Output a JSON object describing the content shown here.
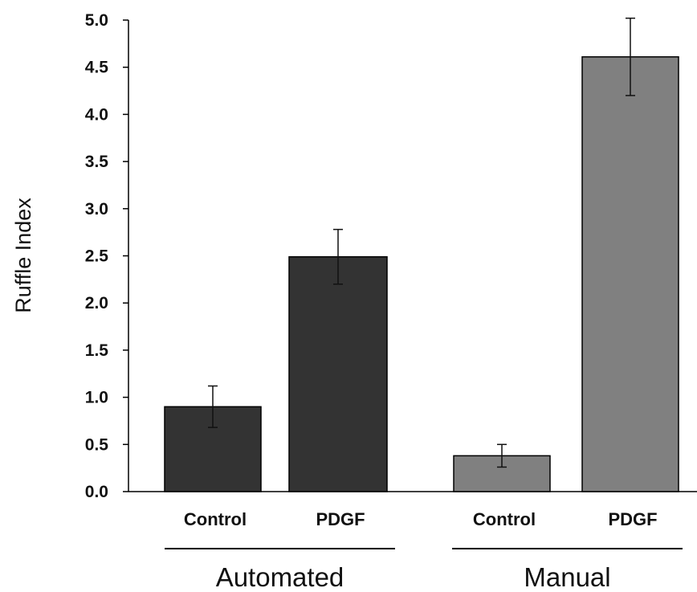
{
  "chart_data": {
    "type": "bar",
    "title": "",
    "xlabel": "",
    "ylabel": "Ruffle Index",
    "ylim": [
      0,
      5.0
    ],
    "yticks": [
      "0.0",
      "0.5",
      "1.0",
      "1.5",
      "2.0",
      "2.5",
      "3.0",
      "3.5",
      "4.0",
      "4.5",
      "5.0"
    ],
    "grid": false,
    "groups": [
      {
        "label": "Automated",
        "color": "#333333",
        "bars": [
          {
            "category": "Control",
            "value": 0.9,
            "error": 0.22
          },
          {
            "category": "PDGF",
            "value": 2.49,
            "error": 0.29
          }
        ]
      },
      {
        "label": "Manual",
        "color": "#808080",
        "bars": [
          {
            "category": "Control",
            "value": 0.38,
            "error": 0.12
          },
          {
            "category": "PDGF",
            "value": 4.61,
            "error": 0.41
          }
        ]
      }
    ]
  }
}
